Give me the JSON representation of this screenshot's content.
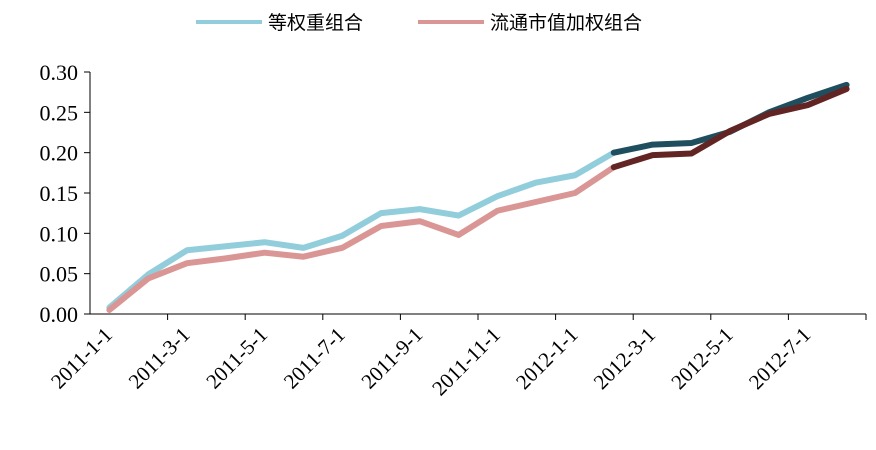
{
  "chart_data": {
    "type": "line",
    "x": [
      "2011-1-1",
      "2011-2-1",
      "2011-3-1",
      "2011-4-1",
      "2011-5-1",
      "2011-6-1",
      "2011-7-1",
      "2011-8-1",
      "2011-9-1",
      "2011-10-1",
      "2011-11-1",
      "2011-12-1",
      "2012-1-1",
      "2012-2-1",
      "2012-3-1",
      "2012-4-1",
      "2012-5-1",
      "2012-6-1",
      "2012-7-1",
      "2012-8-1"
    ],
    "x_tick_labels": [
      "2011-1-1",
      "2011-3-1",
      "2011-5-1",
      "2011-7-1",
      "2011-9-1",
      "2011-11-1",
      "2012-1-1",
      "2012-3-1",
      "2012-5-1",
      "2012-7-1"
    ],
    "y_tick_labels": [
      "0.00",
      "0.05",
      "0.10",
      "0.15",
      "0.20",
      "0.25",
      "0.30"
    ],
    "ylim": [
      0,
      0.3
    ],
    "grid": false,
    "legend_position": "top-center",
    "split_index": 13,
    "series": [
      {
        "name": "等权重组合",
        "color_light": "#92CDDC",
        "color_dark": "#1F4E5F",
        "values": [
          0.008,
          0.049,
          0.079,
          0.084,
          0.089,
          0.082,
          0.097,
          0.125,
          0.13,
          0.122,
          0.146,
          0.163,
          0.172,
          0.2,
          0.21,
          0.212,
          0.226,
          0.25,
          0.268,
          0.284
        ]
      },
      {
        "name": "流通市值加权组合",
        "color_light": "#D99694",
        "color_dark": "#632523",
        "values": [
          0.005,
          0.044,
          0.063,
          0.069,
          0.076,
          0.071,
          0.082,
          0.109,
          0.115,
          0.098,
          0.128,
          0.139,
          0.15,
          0.182,
          0.197,
          0.199,
          0.227,
          0.248,
          0.259,
          0.279
        ]
      }
    ]
  }
}
